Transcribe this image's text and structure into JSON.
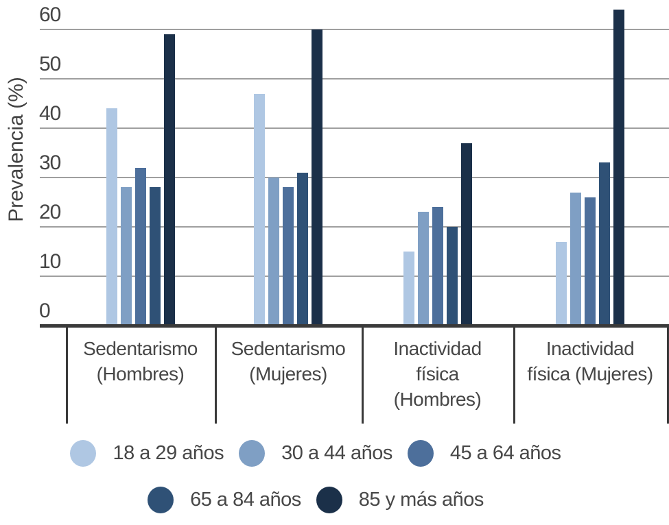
{
  "chart_data": {
    "type": "bar",
    "title": "",
    "xlabel": "",
    "ylabel": "Prevalencia (%)",
    "ylim": [
      0,
      60
    ],
    "yticks": [
      0,
      10,
      20,
      30,
      40,
      50,
      60
    ],
    "grid": true,
    "legend_position": "bottom",
    "legend_rows": [
      3,
      2
    ],
    "categories": [
      {
        "label": "Sedentarismo (Hombres)",
        "lines": [
          "Sedentarismo",
          "(Hombres)"
        ]
      },
      {
        "label": "Sedentarismo (Mujeres)",
        "lines": [
          "Sedentarismo",
          "(Mujeres)"
        ]
      },
      {
        "label": "Inactividad física (Hombres)",
        "lines": [
          "Inactividad",
          "física",
          "(Hombres)"
        ]
      },
      {
        "label": "Inactividad física (Mujeres)",
        "lines": [
          "Inactividad",
          "física (Mujeres)"
        ]
      }
    ],
    "series": [
      {
        "name": "18 a 29 años",
        "color": "#afc7e3",
        "values": [
          44,
          47,
          15,
          17
        ]
      },
      {
        "name": "30 a 44 años",
        "color": "#7f9fc4",
        "values": [
          28,
          30,
          23,
          27
        ]
      },
      {
        "name": "45 a 64 años",
        "color": "#4d6f9b",
        "values": [
          32,
          28,
          24,
          26
        ]
      },
      {
        "name": "65 a 84 años",
        "color": "#2f5176",
        "values": [
          28,
          31,
          20,
          33
        ]
      },
      {
        "name": "85 y más años",
        "color": "#1b3049",
        "values": [
          59,
          60,
          37,
          64
        ]
      }
    ],
    "colors": {
      "text": "#474747",
      "axis_line": "#3a3a3a",
      "gridline": "#9f9f9f",
      "background": "#ffffff"
    }
  }
}
